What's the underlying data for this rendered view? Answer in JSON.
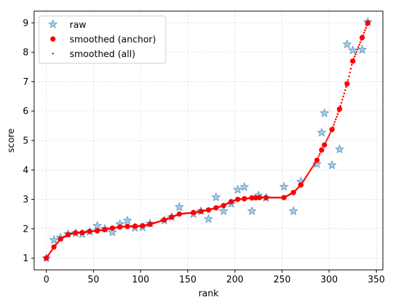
{
  "chart_data": {
    "type": "scatter",
    "title": "",
    "xlabel": "rank",
    "ylabel": "score",
    "xlim": [
      -13,
      357
    ],
    "ylim": [
      0.6,
      9.4
    ],
    "xticks": [
      0,
      50,
      100,
      150,
      200,
      250,
      300,
      350
    ],
    "yticks": [
      1,
      2,
      3,
      4,
      5,
      6,
      7,
      8,
      9
    ],
    "grid": true,
    "legend_position": "top-left",
    "colors": {
      "raw": "#6baed6",
      "smoothed": "#ff0000"
    },
    "legend": [
      "raw",
      "smoothed (anchor)",
      "smoothed (all)"
    ],
    "series": [
      {
        "name": "raw",
        "marker": "star",
        "x": [
          0,
          8,
          15,
          23,
          31,
          38,
          46,
          54,
          62,
          70,
          78,
          86,
          94,
          102,
          110,
          125,
          133,
          141,
          156,
          164,
          172,
          180,
          188,
          196,
          203,
          210,
          218,
          225,
          233,
          252,
          262,
          270,
          287,
          292,
          295,
          303,
          311,
          319,
          325,
          335,
          341
        ],
        "y": [
          1.0,
          1.62,
          1.7,
          1.82,
          1.85,
          1.82,
          1.9,
          2.1,
          2.0,
          1.88,
          2.16,
          2.28,
          2.03,
          2.05,
          2.18,
          2.28,
          2.4,
          2.74,
          2.5,
          2.6,
          2.33,
          3.07,
          2.6,
          2.85,
          3.33,
          3.42,
          2.6,
          3.13,
          3.05,
          3.43,
          2.6,
          3.6,
          4.2,
          5.27,
          5.93,
          4.16,
          4.7,
          8.27,
          8.07,
          8.09,
          9.03
        ]
      },
      {
        "name": "smoothed (anchor)",
        "marker": "circle",
        "x": [
          0,
          8,
          15,
          23,
          31,
          38,
          46,
          54,
          62,
          70,
          78,
          86,
          94,
          102,
          110,
          125,
          133,
          141,
          156,
          164,
          172,
          180,
          188,
          196,
          203,
          210,
          218,
          222,
          226,
          233,
          252,
          262,
          270,
          287,
          292,
          295,
          303,
          311,
          319,
          325,
          335,
          341
        ],
        "y": [
          1.0,
          1.38,
          1.65,
          1.8,
          1.86,
          1.87,
          1.91,
          1.93,
          1.97,
          2.02,
          2.06,
          2.08,
          2.09,
          2.1,
          2.15,
          2.3,
          2.4,
          2.5,
          2.55,
          2.59,
          2.64,
          2.71,
          2.79,
          2.92,
          3.0,
          3.02,
          3.05,
          3.05,
          3.06,
          3.06,
          3.06,
          3.23,
          3.49,
          4.33,
          4.68,
          4.85,
          5.37,
          6.07,
          6.93,
          7.7,
          8.5,
          9.0
        ]
      },
      {
        "name": "smoothed (all)",
        "marker": "point",
        "x": [],
        "y": []
      }
    ]
  }
}
